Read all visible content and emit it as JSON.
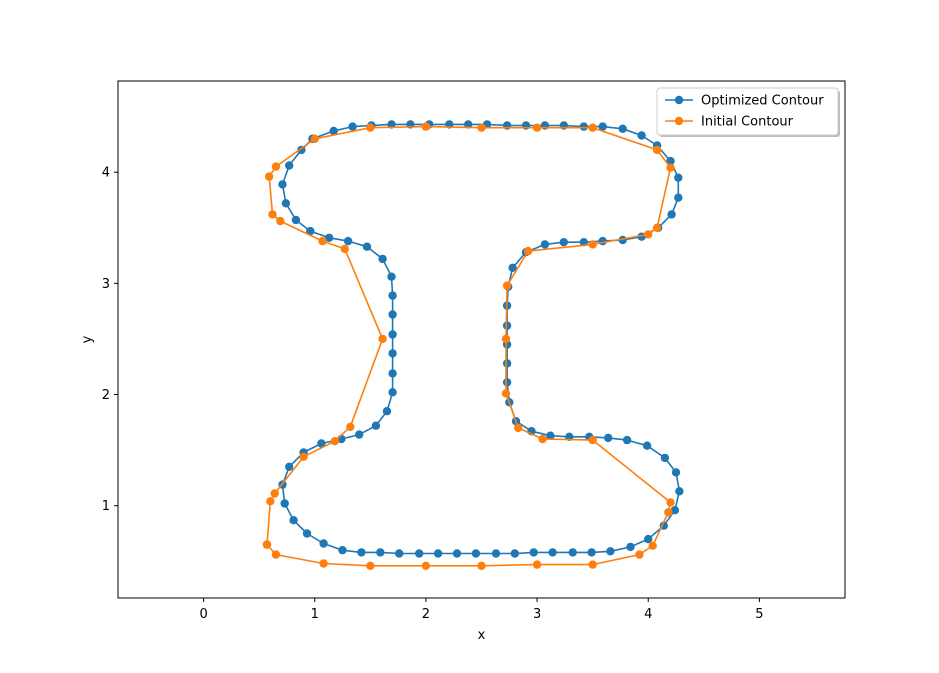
{
  "chart_data": {
    "type": "line",
    "title": "",
    "xlabel": "x",
    "ylabel": "y",
    "xlim": [
      -0.77,
      5.77
    ],
    "ylim": [
      0.17,
      4.82
    ],
    "xticks": [
      0,
      1,
      2,
      3,
      4,
      5
    ],
    "yticks": [
      1,
      2,
      3,
      4
    ],
    "grid": false,
    "legend_position": "top-right",
    "series": [
      {
        "name": "Optimized Contour",
        "color": "#1f77b4",
        "marker": "circle",
        "points": [
          [
            0.98,
            4.3
          ],
          [
            1.17,
            4.37
          ],
          [
            1.34,
            4.41
          ],
          [
            1.51,
            4.42
          ],
          [
            1.69,
            4.43
          ],
          [
            1.86,
            4.43
          ],
          [
            2.03,
            4.43
          ],
          [
            2.21,
            4.43
          ],
          [
            2.38,
            4.43
          ],
          [
            2.55,
            4.43
          ],
          [
            2.73,
            4.42
          ],
          [
            2.9,
            4.42
          ],
          [
            3.07,
            4.42
          ],
          [
            3.24,
            4.42
          ],
          [
            3.42,
            4.41
          ],
          [
            3.59,
            4.41
          ],
          [
            3.77,
            4.39
          ],
          [
            3.94,
            4.33
          ],
          [
            4.08,
            4.24
          ],
          [
            4.2,
            4.1
          ],
          [
            4.27,
            3.95
          ],
          [
            4.27,
            3.77
          ],
          [
            4.21,
            3.62
          ],
          [
            4.09,
            3.5
          ],
          [
            3.94,
            3.42
          ],
          [
            3.77,
            3.39
          ],
          [
            3.59,
            3.38
          ],
          [
            3.42,
            3.37
          ],
          [
            3.24,
            3.37
          ],
          [
            3.07,
            3.35
          ],
          [
            2.9,
            3.28
          ],
          [
            2.78,
            3.14
          ],
          [
            2.74,
            2.97
          ],
          [
            2.73,
            2.8
          ],
          [
            2.73,
            2.62
          ],
          [
            2.73,
            2.45
          ],
          [
            2.73,
            2.28
          ],
          [
            2.73,
            2.11
          ],
          [
            2.75,
            1.93
          ],
          [
            2.81,
            1.76
          ],
          [
            2.95,
            1.67
          ],
          [
            3.12,
            1.63
          ],
          [
            3.29,
            1.62
          ],
          [
            3.47,
            1.62
          ],
          [
            3.64,
            1.61
          ],
          [
            3.81,
            1.59
          ],
          [
            3.99,
            1.54
          ],
          [
            4.15,
            1.43
          ],
          [
            4.25,
            1.3
          ],
          [
            4.28,
            1.13
          ],
          [
            4.24,
            0.96
          ],
          [
            4.14,
            0.82
          ],
          [
            4.0,
            0.7
          ],
          [
            3.84,
            0.63
          ],
          [
            3.66,
            0.59
          ],
          [
            3.49,
            0.58
          ],
          [
            3.32,
            0.58
          ],
          [
            3.14,
            0.58
          ],
          [
            2.97,
            0.58
          ],
          [
            2.8,
            0.57
          ],
          [
            2.63,
            0.57
          ],
          [
            2.45,
            0.57
          ],
          [
            2.28,
            0.57
          ],
          [
            2.11,
            0.57
          ],
          [
            1.94,
            0.57
          ],
          [
            1.76,
            0.57
          ],
          [
            1.59,
            0.58
          ],
          [
            1.42,
            0.58
          ],
          [
            1.25,
            0.6
          ],
          [
            1.08,
            0.66
          ],
          [
            0.93,
            0.75
          ],
          [
            0.81,
            0.87
          ],
          [
            0.73,
            1.02
          ],
          [
            0.71,
            1.19
          ],
          [
            0.77,
            1.35
          ],
          [
            0.9,
            1.48
          ],
          [
            1.06,
            1.56
          ],
          [
            1.24,
            1.6
          ],
          [
            1.4,
            1.64
          ],
          [
            1.55,
            1.72
          ],
          [
            1.65,
            1.85
          ],
          [
            1.7,
            2.02
          ],
          [
            1.7,
            2.19
          ],
          [
            1.7,
            2.37
          ],
          [
            1.7,
            2.54
          ],
          [
            1.7,
            2.72
          ],
          [
            1.7,
            2.89
          ],
          [
            1.69,
            3.06
          ],
          [
            1.61,
            3.22
          ],
          [
            1.47,
            3.33
          ],
          [
            1.3,
            3.38
          ],
          [
            1.13,
            3.41
          ],
          [
            0.96,
            3.47
          ],
          [
            0.83,
            3.57
          ],
          [
            0.74,
            3.72
          ],
          [
            0.71,
            3.89
          ],
          [
            0.77,
            4.06
          ],
          [
            0.88,
            4.2
          ],
          [
            0.98,
            4.3
          ]
        ]
      },
      {
        "name": "Initial Contour",
        "color": "#ff7f0e",
        "marker": "circle",
        "points": [
          [
            0.57,
            0.65
          ],
          [
            0.65,
            0.56
          ],
          [
            1.08,
            0.48
          ],
          [
            1.5,
            0.46
          ],
          [
            2.0,
            0.46
          ],
          [
            2.5,
            0.46
          ],
          [
            3.0,
            0.47
          ],
          [
            3.5,
            0.47
          ],
          [
            3.92,
            0.56
          ],
          [
            4.04,
            0.64
          ],
          [
            4.18,
            0.94
          ],
          [
            4.2,
            1.03
          ],
          [
            3.5,
            1.59
          ],
          [
            3.05,
            1.6
          ],
          [
            2.83,
            1.7
          ],
          [
            2.72,
            2.01
          ],
          [
            2.72,
            2.5
          ],
          [
            2.73,
            2.98
          ],
          [
            2.92,
            3.29
          ],
          [
            3.5,
            3.35
          ],
          [
            4.0,
            3.44
          ],
          [
            4.08,
            3.5
          ],
          [
            4.2,
            4.04
          ],
          [
            4.08,
            4.2
          ],
          [
            3.5,
            4.4
          ],
          [
            3.0,
            4.4
          ],
          [
            2.5,
            4.4
          ],
          [
            2.0,
            4.41
          ],
          [
            1.5,
            4.4
          ],
          [
            1.0,
            4.3
          ],
          [
            0.65,
            4.05
          ],
          [
            0.59,
            3.96
          ],
          [
            0.62,
            3.62
          ],
          [
            0.69,
            3.56
          ],
          [
            1.07,
            3.38
          ],
          [
            1.27,
            3.31
          ],
          [
            1.61,
            2.5
          ],
          [
            1.32,
            1.71
          ],
          [
            1.18,
            1.58
          ],
          [
            0.9,
            1.44
          ],
          [
            0.64,
            1.11
          ],
          [
            0.6,
            1.04
          ],
          [
            0.57,
            0.65
          ]
        ]
      }
    ]
  }
}
